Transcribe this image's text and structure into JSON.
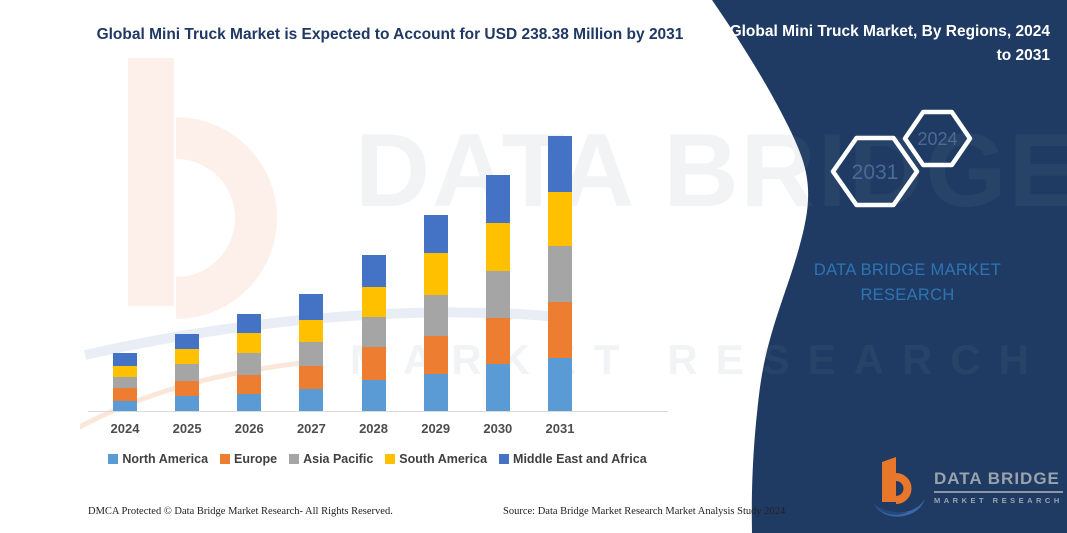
{
  "left_section": {
    "title": "Global Mini Truck Market is Expected to Account for USD 238.38 Million by 2031"
  },
  "right_panel": {
    "title": "Global Mini Truck Market, By Regions, 2024 to 2031",
    "background_color": "#1f3b63",
    "hexagons": [
      {
        "label": "2031"
      },
      {
        "label": "2024"
      }
    ],
    "brand_text": "DATA BRIDGE MARKET RESEARCH",
    "logo": {
      "name": "DATA BRIDGE",
      "subtitle": "MARKET RESEARCH",
      "accent_color": "#e8772c",
      "swoosh_color": "#3a67a5"
    }
  },
  "watermarks": {
    "row1": "DATA BRIDGE",
    "row2": "MARKET RESEARCH"
  },
  "chart_data": {
    "type": "bar",
    "stacked": true,
    "title": "Global Mini Truck Market is Expected to Account for USD 238.38 Million by 2031",
    "unit": "USD Million",
    "categories": [
      "2024",
      "2025",
      "2026",
      "2027",
      "2028",
      "2029",
      "2030",
      "2031"
    ],
    "series": [
      {
        "name": "North America",
        "color": "#5B9BD5",
        "values": [
          9.5,
          13.8,
          15.5,
          19.9,
          27.9,
          32.8,
          41.2,
          46.9
        ]
      },
      {
        "name": "Europe",
        "color": "#ED7D31",
        "values": [
          11.0,
          13.0,
          16.7,
          19.6,
          27.9,
          32.6,
          40.3,
          48.1
        ]
      },
      {
        "name": "Asia Pacific",
        "color": "#A5A5A5",
        "values": [
          9.8,
          14.9,
          18.7,
          20.7,
          25.9,
          35.2,
          40.3,
          48.4
        ]
      },
      {
        "name": "South America",
        "color": "#FFC000",
        "values": [
          9.5,
          13.0,
          17.3,
          19.6,
          25.9,
          36.9,
          41.2,
          46.6
        ]
      },
      {
        "name": "Middle East and Africa",
        "color": "#4472C4",
        "values": [
          11.5,
          12.4,
          16.7,
          22.2,
          28.2,
          32.6,
          41.5,
          48.4
        ]
      }
    ],
    "ylim": [
      0,
      240
    ],
    "y_axis_labels_visible": false,
    "gridlines": false,
    "legend_position": "bottom"
  },
  "footer": {
    "left": "DMCA Protected © Data Bridge Market Research-  All Rights Reserved.",
    "right": "Source: Data Bridge Market Research  Market Analysis Study 2024"
  }
}
